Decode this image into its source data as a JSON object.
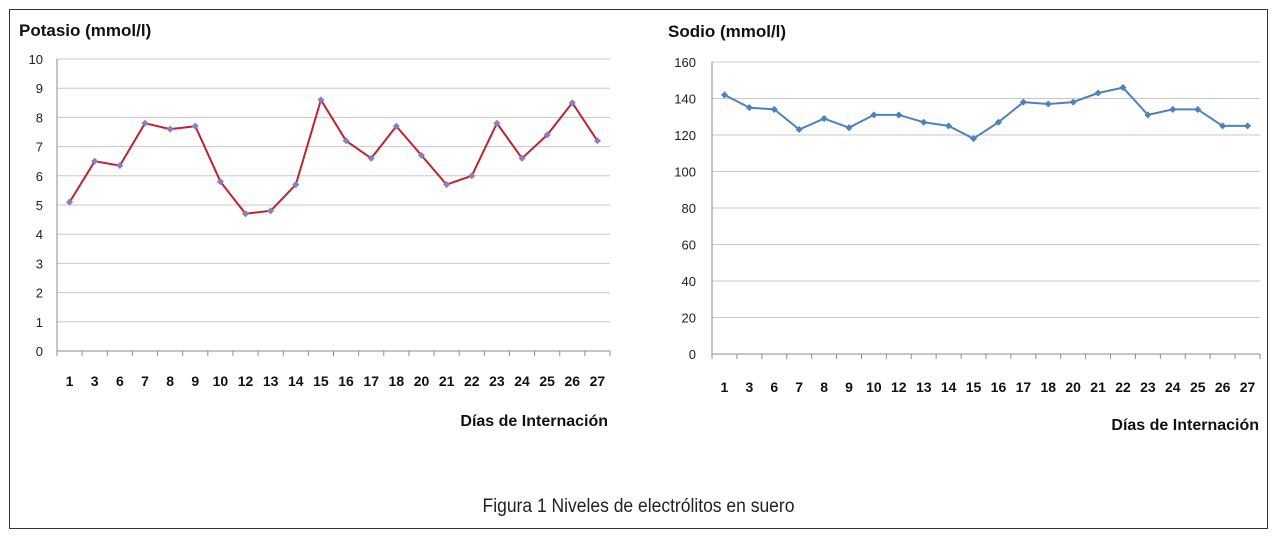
{
  "caption": "Figura 1 Niveles de electrólitos en suero",
  "chart_data": [
    {
      "type": "line",
      "title": "Potasio (mmol/l)",
      "xlabel": "Días de Internación",
      "ylabel": "",
      "ylim": [
        0,
        10
      ],
      "yticks": [
        "0",
        "1",
        "2",
        "3",
        "4",
        "5",
        "6",
        "7",
        "8",
        "9",
        "10"
      ],
      "grid": true,
      "color": "#c0232d",
      "marker_color": "#8a7fc0",
      "categories": [
        "1",
        "3",
        "6",
        "7",
        "8",
        "9",
        "10",
        "12",
        "13",
        "14",
        "15",
        "16",
        "17",
        "18",
        "20",
        "21",
        "22",
        "23",
        "24",
        "25",
        "26",
        "27"
      ],
      "series": [
        {
          "values": [
            5.1,
            6.5,
            6.35,
            7.8,
            7.6,
            7.7,
            5.8,
            4.7,
            4.8,
            5.7,
            8.6,
            7.2,
            6.6,
            7.7,
            6.7,
            5.7,
            6.0,
            7.8,
            6.6,
            7.4,
            8.5,
            7.2
          ]
        }
      ]
    },
    {
      "type": "line",
      "title": "Sodio (mmol/l)",
      "xlabel": "Días de Internación",
      "ylabel": "",
      "ylim": [
        0,
        160
      ],
      "yticks": [
        "0",
        "20",
        "40",
        "60",
        "80",
        "100",
        "120",
        "140",
        "160"
      ],
      "grid": true,
      "color": "#4f81bd",
      "marker_color": "#4f81bd",
      "categories": [
        "1",
        "3",
        "6",
        "7",
        "8",
        "9",
        "10",
        "12",
        "13",
        "14",
        "15",
        "16",
        "17",
        "18",
        "20",
        "21",
        "22",
        "23",
        "24",
        "25",
        "26",
        "27"
      ],
      "series": [
        {
          "values": [
            142,
            135,
            134,
            123,
            129,
            124,
            131,
            131,
            127,
            125,
            118,
            127,
            138,
            137,
            138,
            143,
            146,
            131,
            134,
            134,
            125,
            125
          ]
        }
      ]
    }
  ]
}
